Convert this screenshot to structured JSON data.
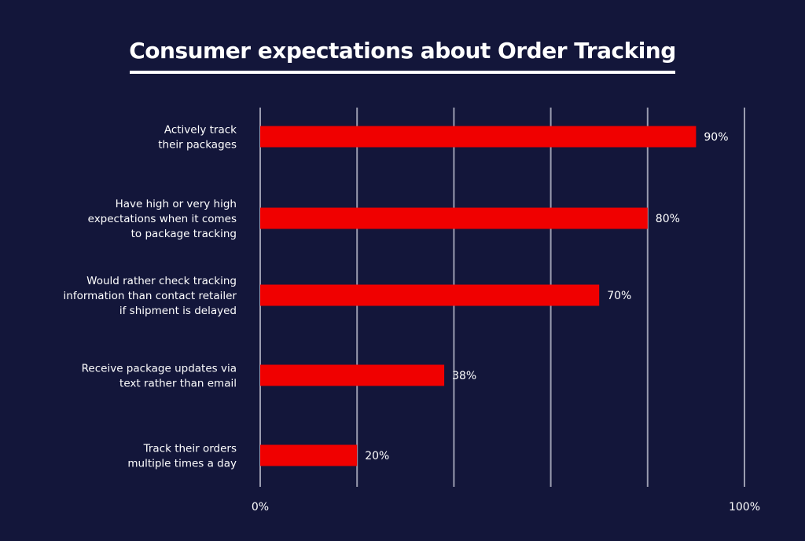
{
  "chart_data": {
    "type": "bar",
    "orientation": "horizontal",
    "title": "Consumer expectations about Order Tracking",
    "categories": [
      [
        "Actively track",
        "their packages"
      ],
      [
        "Have high or very high",
        "expectations when it comes",
        "to package tracking"
      ],
      [
        "Would rather check tracking",
        "information than contact retailer",
        "if shipment is delayed"
      ],
      [
        "Receive package updates via",
        "text rather than email"
      ],
      [
        "Track their orders",
        "multiple times a day"
      ]
    ],
    "values": [
      90,
      80,
      70,
      38,
      20
    ],
    "data_labels": [
      "90%",
      "80%",
      "70%",
      "38%",
      "20%"
    ],
    "xlim": [
      0,
      100
    ],
    "x_tick_labels": [
      "0%",
      "100%"
    ],
    "grid": true,
    "colors": {
      "background": "#13163a",
      "bar": "#f00000",
      "grid": "#9a9cb0",
      "text": "#ffffff"
    }
  }
}
